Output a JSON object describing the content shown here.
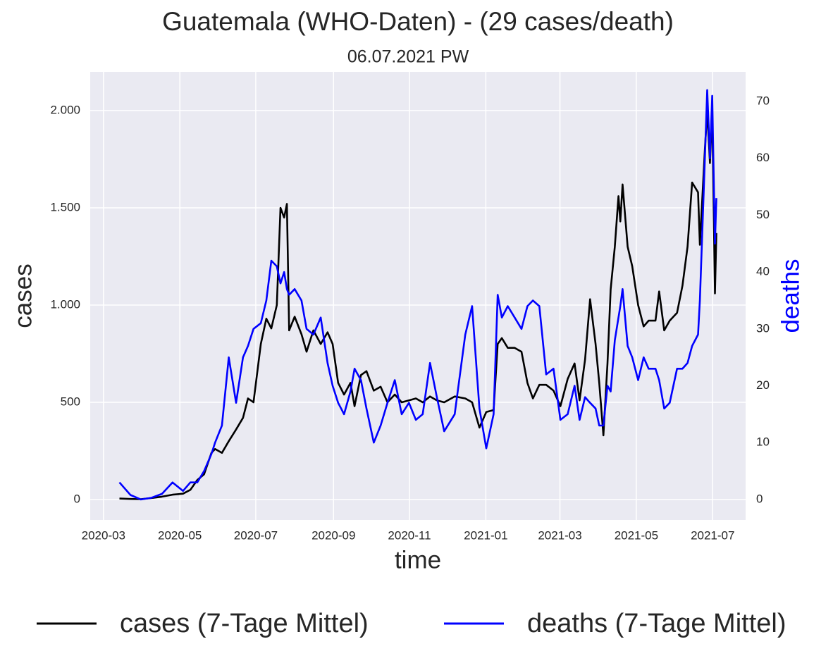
{
  "chart_data": {
    "type": "line",
    "title": "Guatemala (WHO-Daten) - (29 cases/death)",
    "subtitle": "06.07.2021 PW",
    "xlabel": "time",
    "ylabel": "cases",
    "y2label": "deaths",
    "x": [
      2020.199,
      2020.223,
      2020.246,
      2020.269,
      2020.292,
      2020.315,
      2020.338,
      2020.354,
      2020.369,
      2020.384,
      2020.4,
      2020.408,
      2020.423,
      2020.438,
      2020.454,
      2020.469,
      2020.48,
      2020.492,
      2020.508,
      2020.52,
      2020.531,
      2020.543,
      2020.551,
      2020.559,
      2020.565,
      2020.57,
      2020.582,
      2020.597,
      2020.608,
      2020.623,
      2020.639,
      2020.654,
      2020.665,
      2020.677,
      2020.69,
      2020.704,
      2020.713,
      2020.727,
      2020.739,
      2020.755,
      2020.77,
      2020.785,
      2020.801,
      2020.816,
      2020.832,
      2020.847,
      2020.862,
      2020.878,
      2020.893,
      2020.909,
      2020.932,
      2020.955,
      2020.97,
      2020.986,
      2021.001,
      2021.017,
      2021.026,
      2021.035,
      2021.048,
      2021.063,
      2021.078,
      2021.091,
      2021.103,
      2021.117,
      2021.132,
      2021.148,
      2021.163,
      2021.179,
      2021.194,
      2021.205,
      2021.217,
      2021.228,
      2021.24,
      2021.248,
      2021.257,
      2021.266,
      2021.273,
      2021.282,
      2021.29,
      2021.294,
      2021.299,
      2021.31,
      2021.32,
      2021.333,
      2021.345,
      2021.356,
      2021.371,
      2021.379,
      2021.39,
      2021.402,
      2021.418,
      2021.43,
      2021.441,
      2021.451,
      2021.464,
      2021.468,
      2021.479,
      2021.484,
      2021.49,
      2021.495,
      2021.501,
      2021.504
    ],
    "series": [
      {
        "name": "cases (7-Tage Mittel)",
        "color": "#000000",
        "axis": "y",
        "values": [
          5,
          3,
          2,
          8,
          15,
          25,
          30,
          50,
          100,
          130,
          240,
          260,
          240,
          300,
          360,
          420,
          520,
          500,
          800,
          930,
          880,
          1000,
          1500,
          1450,
          1520,
          870,
          940,
          850,
          760,
          870,
          800,
          860,
          800,
          600,
          540,
          600,
          480,
          640,
          660,
          560,
          580,
          500,
          540,
          500,
          510,
          520,
          500,
          530,
          510,
          500,
          530,
          520,
          500,
          370,
          450,
          460,
          800,
          830,
          780,
          780,
          760,
          600,
          520,
          590,
          590,
          560,
          480,
          620,
          700,
          510,
          720,
          1030,
          800,
          600,
          330,
          700,
          1080,
          1300,
          1560,
          1430,
          1620,
          1300,
          1200,
          1000,
          890,
          920,
          920,
          1070,
          870,
          920,
          960,
          1100,
          1300,
          1630,
          1580,
          1310,
          1800,
          2000,
          1730,
          2000,
          1060,
          1370
        ]
      },
      {
        "name": "deaths (7-Tage Mittel)",
        "color": "#0000ff",
        "axis": "y2",
        "values": [
          3,
          0.8,
          0,
          0.3,
          1,
          3,
          1.5,
          3,
          3,
          5,
          8,
          10,
          13,
          25,
          17,
          25,
          27,
          30,
          31,
          35,
          42,
          41,
          38,
          40,
          37,
          36,
          37,
          35,
          30,
          29,
          32,
          24,
          20,
          17,
          15,
          19,
          23,
          21,
          16,
          10,
          13,
          17,
          21,
          15,
          17,
          14,
          15,
          24,
          18,
          12,
          15,
          29,
          34,
          16,
          9,
          15,
          36,
          32,
          34,
          32,
          30,
          34,
          35,
          34,
          22,
          23,
          14,
          15,
          20,
          14,
          18,
          17,
          16,
          13,
          13,
          20,
          19,
          28,
          32,
          34,
          37,
          27,
          25,
          21,
          25,
          23,
          23,
          21,
          16,
          17,
          23,
          23,
          24,
          27,
          29,
          35,
          60,
          72,
          60,
          71,
          45,
          53
        ]
      }
    ],
    "xlim": [
      2020.135,
      2021.568
    ],
    "xticks": [
      {
        "value": 2020.164,
        "label": "2020-03"
      },
      {
        "value": 2020.331,
        "label": "2020-05"
      },
      {
        "value": 2020.497,
        "label": "2020-07"
      },
      {
        "value": 2020.667,
        "label": "2020-09"
      },
      {
        "value": 2020.833,
        "label": "2020-11"
      },
      {
        "value": 2021.0,
        "label": "2021-01"
      },
      {
        "value": 2021.162,
        "label": "2021-03"
      },
      {
        "value": 2021.329,
        "label": "2021-05"
      },
      {
        "value": 2021.496,
        "label": "2021-07"
      }
    ],
    "ylim": [
      -105,
      2199
    ],
    "yticks": [
      0,
      500,
      {
        "value": 1000,
        "label": "1.000"
      },
      {
        "value": 1500,
        "label": "1.500"
      },
      {
        "value": 2000,
        "label": "2.000"
      }
    ],
    "y2lim": [
      -3.6,
      75.2
    ],
    "y2ticks": [
      0,
      10,
      20,
      30,
      40,
      50,
      60,
      70
    ],
    "grid": true,
    "legend": "bottom"
  }
}
